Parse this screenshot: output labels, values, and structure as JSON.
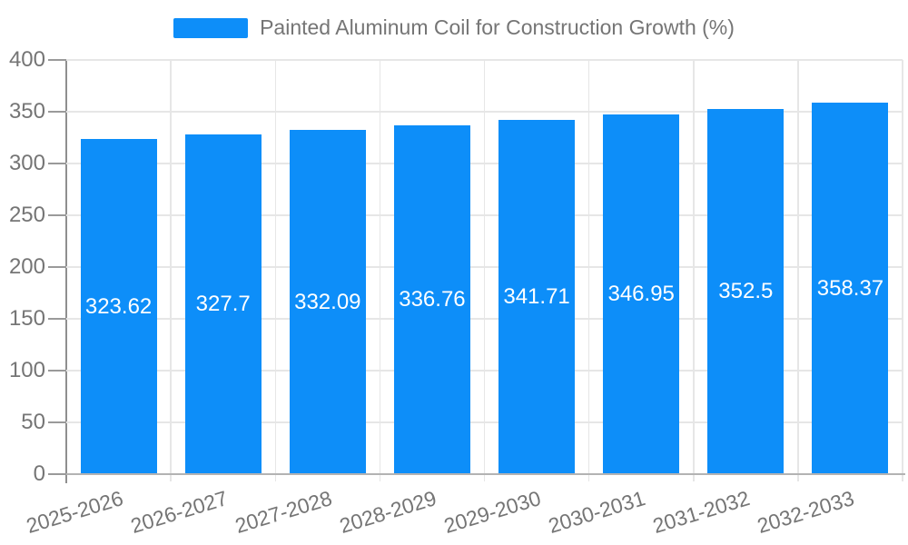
{
  "legend": {
    "label": "Painted Aluminum Coil for Construction Growth (%)"
  },
  "colors": {
    "bar": "#0d8ef9",
    "axis_text": "#757575",
    "data_label": "#ffffff",
    "grid_line": "#e6e6e6",
    "axis_line": "#8f8f8f",
    "baseline": "#b3b3b3"
  },
  "chart_data": {
    "type": "bar",
    "title": "Painted Aluminum Coil for Construction Growth (%)",
    "categories": [
      "2025-2026",
      "2026-2027",
      "2027-2028",
      "2028-2029",
      "2029-2030",
      "2030-2031",
      "2031-2032",
      "2032-2033"
    ],
    "values": [
      323.62,
      327.7,
      332.09,
      336.76,
      341.71,
      346.95,
      352.5,
      358.37
    ],
    "xlabel": "",
    "ylabel": "",
    "ylim": [
      0,
      400
    ],
    "ytick_step": 50,
    "grid": true,
    "legend_position": "top-center",
    "data_labels": "inside-center-white",
    "x_label_rotation_deg": -17
  }
}
